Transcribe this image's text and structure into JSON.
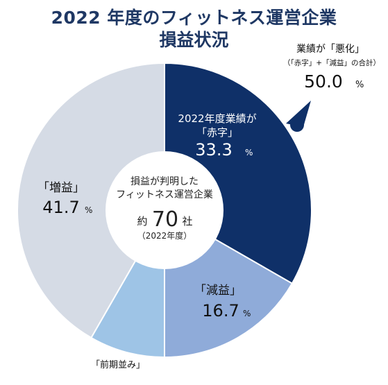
{
  "title_line1": "2022 年度のフィットネス運営企業",
  "title_line2": "損益状況",
  "center": {
    "line1": "損益が判明した",
    "line2": "フィットネス運営企業",
    "prefix": "約",
    "number": "70",
    "suffix": "社",
    "year": "（2022年度）"
  },
  "callout": {
    "line1": "業績が「悪化」",
    "line2": "（「赤字」+「減益」の合計）",
    "value": "50.0",
    "unit": "%"
  },
  "chart_data": {
    "type": "pie",
    "donut": true,
    "slices": [
      {
        "label_top": "2022年度業績が",
        "label": "「赤字」",
        "value": 33.3,
        "value_text": "33.3",
        "unit": "%",
        "color": "#0f3068"
      },
      {
        "label": "「減益」",
        "value": 16.7,
        "value_text": "16.7",
        "unit": "%",
        "color": "#8fabd9"
      },
      {
        "label": "「前期並み」",
        "value": 8.3,
        "color": "#9ec4e6"
      },
      {
        "label": "「増益」",
        "value": 41.7,
        "value_text": "41.7",
        "unit": "%",
        "color": "#d5dbe5"
      }
    ]
  }
}
